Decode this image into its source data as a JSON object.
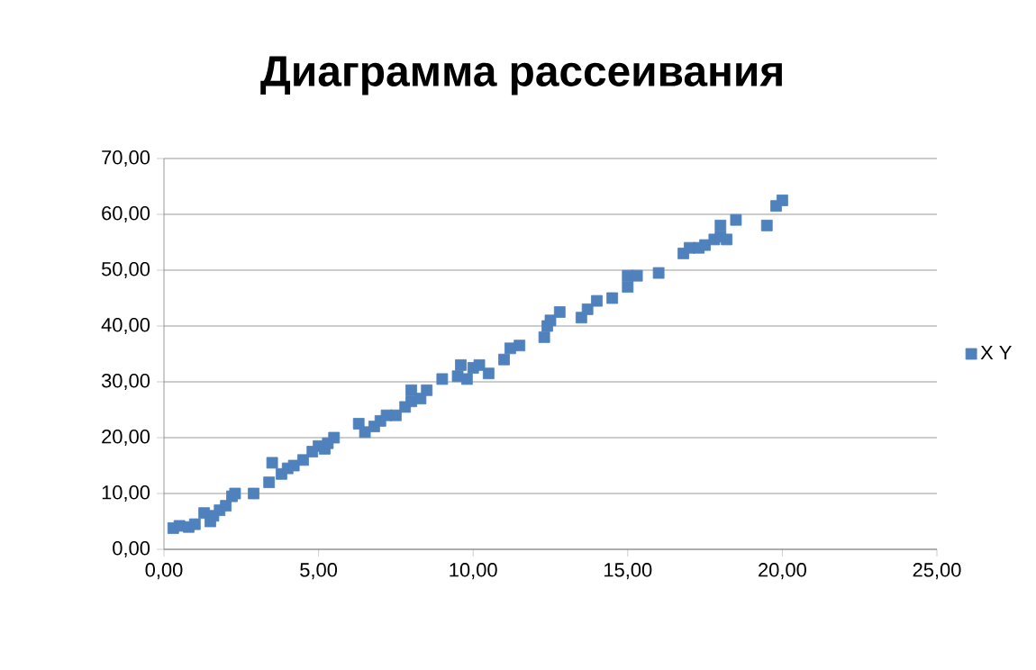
{
  "chart_data": {
    "type": "scatter",
    "title": "Диаграмма рассеивания",
    "x": [
      0.3,
      0.5,
      0.8,
      1.0,
      1.3,
      1.5,
      1.6,
      1.8,
      2.0,
      2.2,
      2.3,
      2.9,
      3.4,
      3.5,
      3.8,
      4.0,
      4.2,
      4.5,
      4.8,
      5.0,
      5.2,
      5.3,
      5.5,
      6.3,
      6.5,
      6.8,
      7.0,
      7.2,
      7.5,
      7.8,
      8.0,
      8.0,
      8.3,
      8.5,
      9.0,
      9.5,
      9.6,
      9.8,
      10.0,
      10.2,
      10.5,
      11.0,
      11.2,
      11.5,
      12.3,
      12.4,
      12.5,
      12.8,
      13.5,
      13.7,
      14.0,
      14.5,
      15.0,
      15.0,
      15.3,
      16.0,
      16.8,
      17.0,
      17.3,
      17.5,
      17.8,
      18.0,
      18.2,
      18.0,
      18.5,
      19.5,
      19.8,
      20.0
    ],
    "series": [
      {
        "name": "X Y",
        "color": "#4f81bd",
        "values": [
          3.8,
          4.2,
          4.0,
          4.5,
          6.5,
          5.0,
          6.0,
          7.0,
          7.8,
          9.5,
          10.0,
          10.0,
          12.0,
          15.5,
          13.5,
          14.5,
          15.0,
          16.0,
          17.5,
          18.5,
          18.0,
          19.0,
          20.0,
          22.5,
          21.0,
          22.0,
          23.0,
          24.0,
          24.0,
          25.5,
          26.5,
          28.5,
          27.0,
          28.5,
          30.5,
          31.0,
          33.0,
          30.5,
          32.5,
          33.0,
          31.5,
          34.0,
          36.0,
          36.5,
          38.0,
          40.0,
          41.0,
          42.5,
          41.5,
          43.0,
          44.5,
          45.0,
          47.0,
          49.0,
          49.0,
          49.5,
          53.0,
          54.0,
          54.0,
          54.5,
          55.5,
          56.0,
          55.5,
          58.0,
          59.0,
          58.0,
          61.5,
          62.5
        ]
      }
    ],
    "xlim": [
      0,
      25
    ],
    "ylim": [
      0,
      70
    ],
    "xticks": [
      {
        "value": 0,
        "label": "0,00"
      },
      {
        "value": 5,
        "label": "5,00"
      },
      {
        "value": 10,
        "label": "10,00"
      },
      {
        "value": 15,
        "label": "15,00"
      },
      {
        "value": 20,
        "label": "20,00"
      },
      {
        "value": 25,
        "label": "25,00"
      }
    ],
    "yticks": [
      {
        "value": 0,
        "label": "0,00"
      },
      {
        "value": 10,
        "label": "10,00"
      },
      {
        "value": 20,
        "label": "20,00"
      },
      {
        "value": 30,
        "label": "30,00"
      },
      {
        "value": 40,
        "label": "40,00"
      },
      {
        "value": 50,
        "label": "50,00"
      },
      {
        "value": 60,
        "label": "60,00"
      },
      {
        "value": 70,
        "label": "70,00"
      }
    ],
    "grid": "y",
    "legend": "right",
    "marker": "square"
  }
}
